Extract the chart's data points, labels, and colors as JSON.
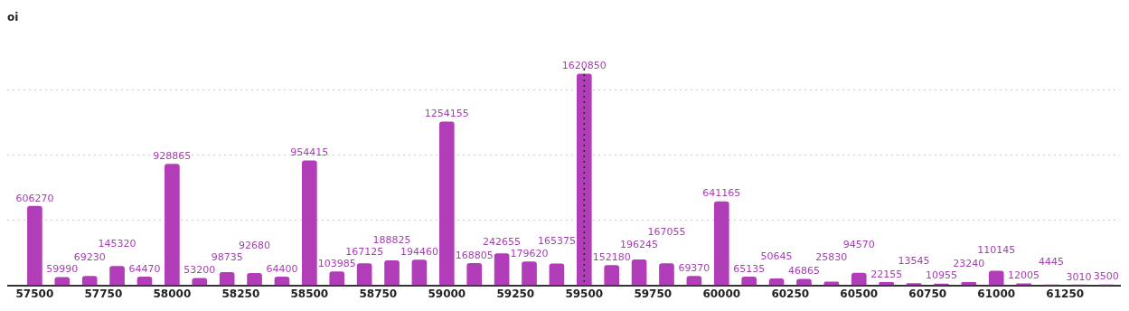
{
  "chart_data": {
    "type": "bar",
    "annotations": [
      "oi"
    ],
    "x": [
      57500,
      57600,
      57700,
      57800,
      57900,
      58000,
      58100,
      58200,
      58300,
      58400,
      58500,
      58600,
      58700,
      58800,
      58900,
      59000,
      59100,
      59200,
      59300,
      59400,
      59500,
      59600,
      59700,
      59800,
      59900,
      60000,
      60100,
      60200,
      60300,
      60400,
      60500,
      60600,
      60700,
      60800,
      60900,
      61000,
      61100,
      61200,
      61300,
      61400
    ],
    "values": [
      606270,
      59990,
      69230,
      145320,
      64470,
      928865,
      53200,
      98735,
      92680,
      64400,
      954415,
      103985,
      167125,
      188825,
      194460,
      1254155,
      168805,
      242655,
      179620,
      165375,
      1620850,
      152180,
      196245,
      167055,
      69370,
      641165,
      65135,
      50645,
      46865,
      25830,
      94570,
      22155,
      13545,
      10955,
      23240,
      110145,
      12005,
      4445,
      3010,
      3500
    ],
    "color": "#b13db8",
    "data_labels": true,
    "xlim": [
      57400,
      61450
    ],
    "xticks": [
      57500,
      57750,
      58000,
      58250,
      58500,
      58750,
      59000,
      59250,
      59500,
      59750,
      60000,
      60250,
      60500,
      60750,
      61000,
      61250
    ],
    "yticks": [
      {
        "value": 0,
        "label": null
      },
      {
        "value": 500000,
        "label": null
      },
      {
        "value": 1000000,
        "label": null
      },
      {
        "value": 1500000,
        "label": null
      }
    ],
    "tick_labels": "x",
    "grid": "y",
    "ref_lines": [
      {
        "axis": "x",
        "value": 59500,
        "label": null,
        "color": "#222222",
        "line_style": "dotted"
      }
    ]
  }
}
